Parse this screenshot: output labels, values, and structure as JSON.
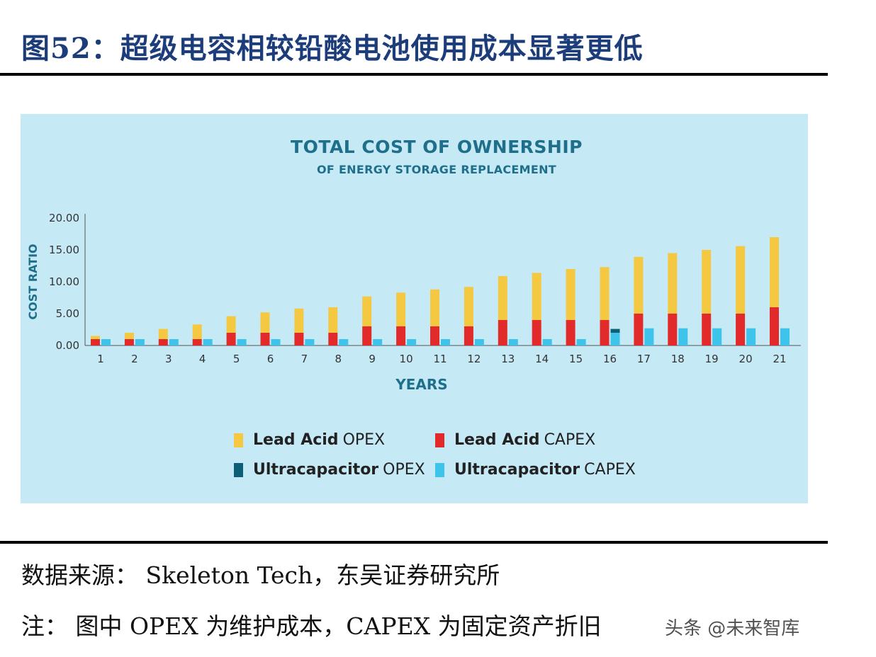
{
  "figure": {
    "title": "图52：超级电容相较铅酸电池使用成本显著更低",
    "source": "数据来源：  Skeleton Tech，东吴证券研究所",
    "note": "注：  图中 OPEX 为维护成本，CAPEX 为固定资产折旧",
    "watermark": "头条 @未来智库"
  },
  "colors": {
    "lead_opex": "#f5c842",
    "lead_capex": "#e32a2a",
    "ultra_opex": "#0d5f75",
    "ultra_capex": "#3ec4ea",
    "panel": "#c6e9f6",
    "title": "#1f6f8b"
  },
  "chart_data": {
    "type": "bar",
    "title": "TOTAL COST OF OWNERSHIP",
    "subtitle": "OF ENERGY STORAGE REPLACEMENT",
    "xlabel": "YEARS",
    "ylabel": "COST RATIO",
    "ylim": [
      0,
      20
    ],
    "yticks": [
      "0.00",
      "5.00",
      "10.00",
      "15.00",
      "20.00"
    ],
    "categories": [
      "1",
      "2",
      "3",
      "4",
      "5",
      "6",
      "7",
      "8",
      "9",
      "10",
      "11",
      "12",
      "13",
      "14",
      "15",
      "16",
      "17",
      "18",
      "19",
      "20",
      "21"
    ],
    "grid": false,
    "legend_position": "bottom",
    "series": [
      {
        "name": "Lead Acid CAPEX",
        "legend_bold": "Lead Acid",
        "legend_rest": "CAPEX",
        "group": "lead",
        "stack_order": 0,
        "values": [
          1,
          1,
          1,
          1,
          2,
          2,
          2,
          2,
          3,
          3,
          3,
          3,
          4,
          4,
          4,
          4,
          5,
          5,
          5,
          5,
          6
        ]
      },
      {
        "name": "Lead Acid OPEX",
        "legend_bold": "Lead Acid",
        "legend_rest": "OPEX",
        "group": "lead",
        "stack_order": 1,
        "values": [
          0.5,
          1,
          1.6,
          2.3,
          2.6,
          3.2,
          3.8,
          4,
          4.7,
          5.3,
          5.8,
          6.2,
          6.9,
          7.4,
          8,
          8.3,
          8.9,
          9.5,
          10,
          10.6,
          11
        ]
      },
      {
        "name": "Ultracapacitor CAPEX",
        "legend_bold": "Ultracapacitor",
        "legend_rest": "CAPEX",
        "group": "ultra",
        "stack_order": 0,
        "values": [
          1,
          1,
          1,
          1,
          1,
          1,
          1,
          1,
          1,
          1,
          1,
          1,
          1,
          1,
          1,
          2,
          2.7,
          2.7,
          2.7,
          2.7,
          2.7
        ]
      },
      {
        "name": "Ultracapacitor OPEX",
        "legend_bold": "Ultracapacitor",
        "legend_rest": "OPEX",
        "group": "ultra",
        "stack_order": 1,
        "values": [
          0,
          0,
          0,
          0,
          0,
          0,
          0,
          0,
          0,
          0,
          0,
          0,
          0,
          0,
          0,
          0.6,
          0,
          0,
          0,
          0,
          0
        ]
      }
    ]
  }
}
